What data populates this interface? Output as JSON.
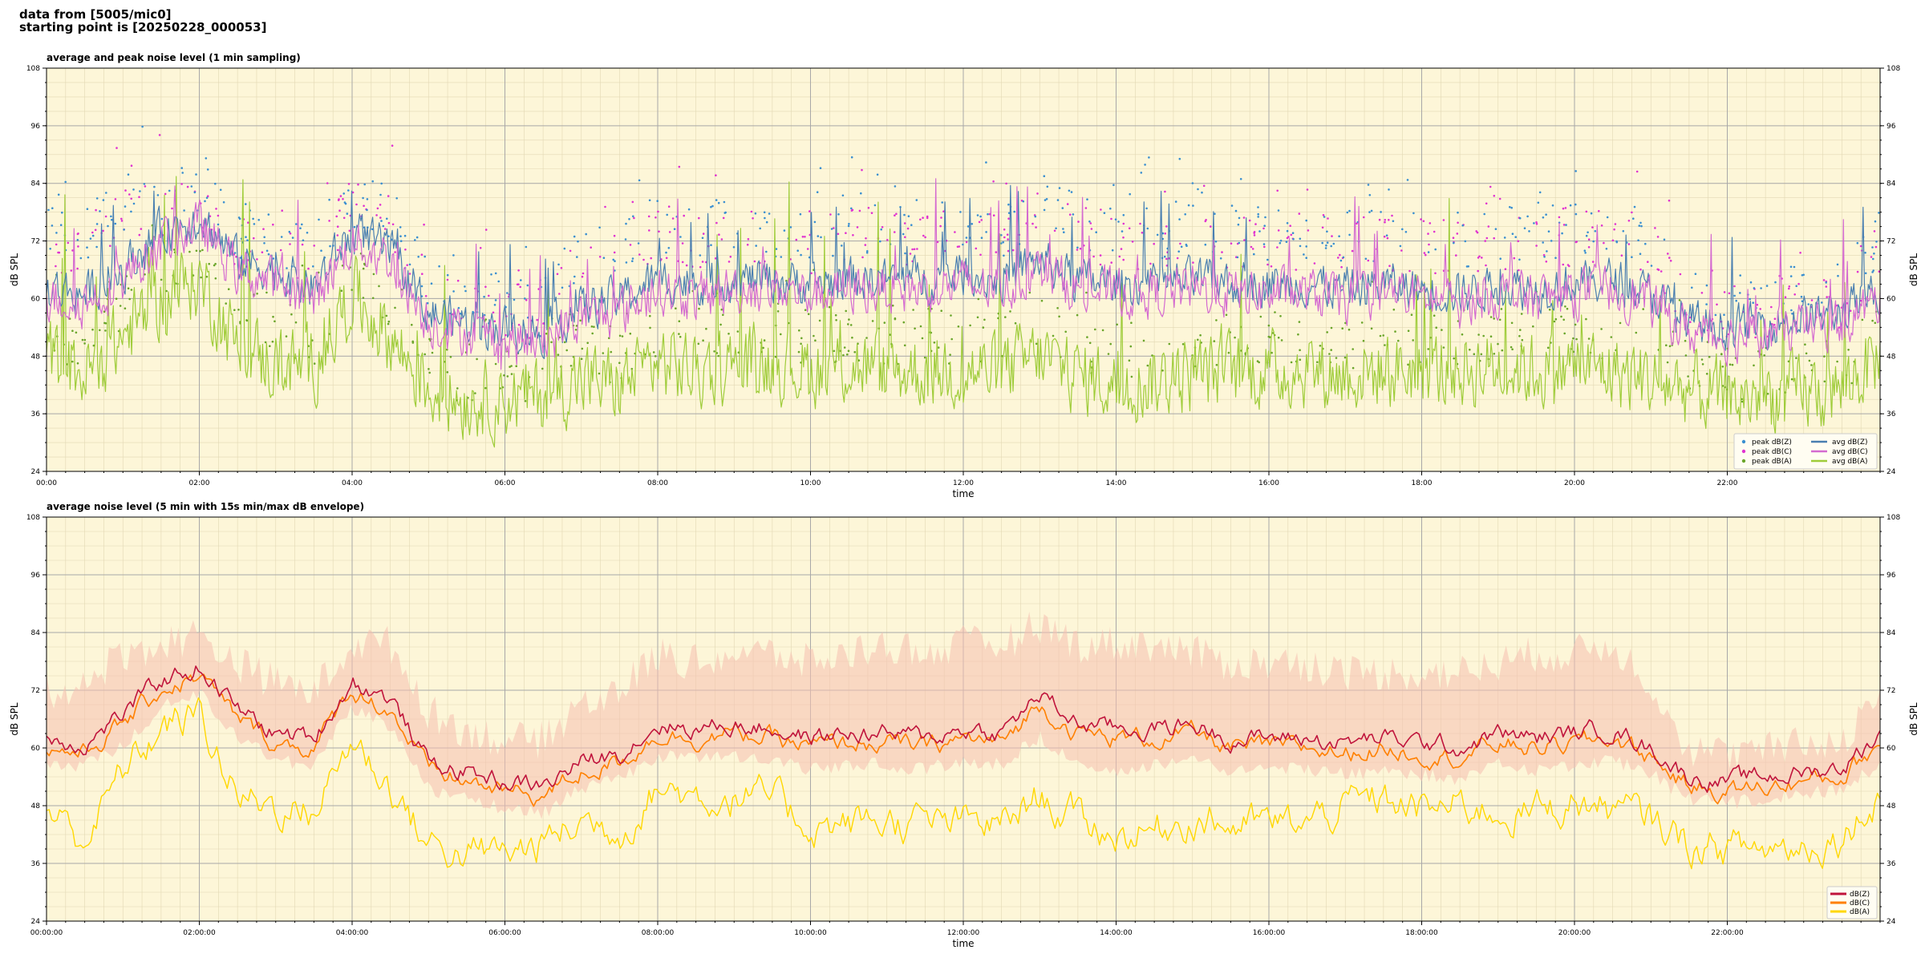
{
  "header": {
    "line1": "data from [5005/mic0]",
    "line2": "starting point is [20250228_000053]"
  },
  "colors": {
    "background": "#fdf6d8",
    "peak_z": "#3a8fd0",
    "peak_c": "#e033d0",
    "peak_a": "#6aa52a",
    "avg_z": "#4a7fb0",
    "avg_c": "#d46ad0",
    "avg_a": "#9fcc3a",
    "dB_Z": "#c0143c",
    "dB_C": "#ff8000",
    "dB_A": "#ffd700",
    "envelope": "#f5c0b0"
  },
  "chart_data": [
    {
      "type": "line",
      "title": "average and peak noise level (1 min sampling)",
      "xlabel": "time",
      "ylabel": "dB SPL",
      "ylim": [
        24,
        108
      ],
      "yticks": [
        24,
        36,
        48,
        60,
        72,
        84,
        96,
        108
      ],
      "xlim_hours": [
        0,
        24
      ],
      "xtick_labels": [
        "00:00",
        "02:00",
        "04:00",
        "06:00",
        "08:00",
        "10:00",
        "12:00",
        "14:00",
        "16:00",
        "18:00",
        "20:00",
        "22:00"
      ],
      "grid": true,
      "legend_position": "bottom-right",
      "legend": [
        "peak dB(Z)",
        "peak dB(C)",
        "peak dB(A)",
        "avg dB(Z)",
        "avg dB(C)",
        "avg dB(A)"
      ],
      "x_hours": [
        0,
        0.5,
        1,
        1.5,
        2,
        2.5,
        3,
        3.5,
        4,
        4.5,
        5,
        5.5,
        6,
        6.5,
        7,
        7.5,
        8,
        8.5,
        9,
        9.5,
        10,
        10.5,
        11,
        11.5,
        12,
        12.5,
        13,
        13.5,
        14,
        14.5,
        15,
        15.5,
        16,
        16.5,
        17,
        17.5,
        18,
        18.5,
        19,
        19.5,
        20,
        20.5,
        21,
        21.5,
        22,
        22.5,
        23,
        23.5,
        24
      ],
      "series": [
        {
          "name": "avg dB(Z)",
          "values": [
            62,
            61,
            66,
            74,
            77,
            68,
            66,
            62,
            74,
            70,
            57,
            55,
            54,
            53,
            58,
            60,
            64,
            63,
            64,
            64,
            63,
            64,
            64,
            64,
            65,
            64,
            68,
            64,
            63,
            63,
            64,
            63,
            63,
            63,
            62,
            63,
            62,
            61,
            63,
            62,
            63,
            64,
            61,
            55,
            54,
            55,
            56,
            57,
            62
          ]
        },
        {
          "name": "avg dB(C)",
          "values": [
            60,
            59,
            64,
            72,
            75,
            66,
            63,
            60,
            72,
            68,
            55,
            53,
            51,
            51,
            56,
            57,
            62,
            60,
            62,
            62,
            61,
            62,
            62,
            62,
            63,
            62,
            66,
            62,
            61,
            61,
            62,
            61,
            61,
            61,
            60,
            61,
            60,
            59,
            61,
            60,
            61,
            62,
            59,
            53,
            52,
            53,
            54,
            55,
            60
          ]
        },
        {
          "name": "avg dB(A)",
          "values": [
            48,
            44,
            52,
            60,
            64,
            50,
            46,
            46,
            61,
            52,
            41,
            39,
            39,
            40,
            43,
            42,
            47,
            45,
            46,
            47,
            45,
            46,
            45,
            45,
            45,
            45,
            48,
            44,
            42,
            43,
            44,
            45,
            45,
            45,
            44,
            45,
            45,
            45,
            46,
            45,
            46,
            45,
            43,
            41,
            39,
            40,
            40,
            41,
            48
          ]
        },
        {
          "name": "peak dB(Z)",
          "values": [
            73,
            74,
            80,
            81,
            82,
            73,
            72,
            70,
            81,
            78,
            63,
            61,
            60,
            58,
            70,
            72,
            76,
            74,
            75,
            74,
            73,
            75,
            74,
            75,
            76,
            74,
            80,
            76,
            74,
            74,
            75,
            74,
            74,
            74,
            73,
            74,
            73,
            72,
            74,
            73,
            74,
            76,
            72,
            60,
            59,
            60,
            61,
            62,
            73
          ]
        },
        {
          "name": "peak dB(C)",
          "values": [
            70,
            71,
            77,
            79,
            80,
            71,
            70,
            68,
            79,
            76,
            61,
            59,
            58,
            56,
            68,
            70,
            74,
            72,
            73,
            72,
            71,
            73,
            72,
            73,
            74,
            72,
            78,
            74,
            72,
            72,
            73,
            72,
            72,
            72,
            71,
            72,
            71,
            70,
            72,
            71,
            72,
            74,
            70,
            58,
            57,
            58,
            59,
            60,
            71
          ]
        },
        {
          "name": "peak dB(A)",
          "values": [
            55,
            50,
            58,
            66,
            70,
            58,
            54,
            52,
            66,
            60,
            46,
            44,
            43,
            44,
            50,
            48,
            54,
            52,
            53,
            54,
            52,
            53,
            52,
            52,
            52,
            52,
            55,
            51,
            49,
            50,
            51,
            52,
            52,
            52,
            51,
            52,
            52,
            52,
            53,
            52,
            53,
            52,
            50,
            46,
            44,
            45,
            45,
            46,
            55
          ]
        }
      ]
    },
    {
      "type": "line",
      "title": "average noise level (5 min with 15s min/max dB envelope)",
      "xlabel": "time",
      "ylabel": "dB SPL",
      "ylim": [
        24,
        108
      ],
      "yticks": [
        24,
        36,
        48,
        60,
        72,
        84,
        96,
        108
      ],
      "xlim_hours": [
        0,
        24
      ],
      "xtick_labels": [
        "00:00:00",
        "02:00:00",
        "04:00:00",
        "06:00:00",
        "08:00:00",
        "10:00:00",
        "12:00:00",
        "14:00:00",
        "16:00:00",
        "18:00:00",
        "20:00:00",
        "22:00:00"
      ],
      "grid": true,
      "legend_position": "bottom-right",
      "legend": [
        "dB(Z)",
        "dB(C)",
        "dB(A)"
      ],
      "x_hours": [
        0,
        0.5,
        1,
        1.5,
        2,
        2.5,
        3,
        3.5,
        4,
        4.5,
        5,
        5.5,
        6,
        6.5,
        7,
        7.5,
        8,
        8.5,
        9,
        9.5,
        10,
        10.5,
        11,
        11.5,
        12,
        12.5,
        13,
        13.5,
        14,
        14.5,
        15,
        15.5,
        16,
        16.5,
        17,
        17.5,
        18,
        18.5,
        19,
        19.5,
        20,
        20.5,
        21,
        21.5,
        22,
        22.5,
        23,
        23.5,
        24
      ],
      "series": [
        {
          "name": "dB(Z)",
          "values": [
            62,
            61,
            67,
            74,
            77,
            68,
            63,
            62,
            74,
            70,
            57,
            55,
            53,
            52,
            57,
            59,
            65,
            64,
            65,
            64,
            62,
            63,
            63,
            62,
            64,
            63,
            71,
            65,
            64,
            64,
            65,
            62,
            62,
            62,
            61,
            62,
            61,
            60,
            63,
            62,
            63,
            64,
            60,
            54,
            53,
            54,
            55,
            56,
            63
          ]
        },
        {
          "name": "dB(C)",
          "values": [
            60,
            59,
            65,
            72,
            75,
            66,
            61,
            60,
            72,
            68,
            55,
            53,
            51,
            50,
            55,
            57,
            63,
            62,
            63,
            62,
            60,
            61,
            61,
            60,
            62,
            61,
            69,
            63,
            62,
            62,
            63,
            60,
            60,
            60,
            59,
            60,
            59,
            58,
            61,
            60,
            61,
            62,
            58,
            52,
            51,
            52,
            53,
            54,
            61
          ]
        },
        {
          "name": "dB(A)",
          "values": [
            47,
            41,
            55,
            64,
            67,
            50,
            48,
            47,
            62,
            52,
            40,
            38,
            38,
            40,
            45,
            43,
            52,
            50,
            50,
            49,
            44,
            44,
            45,
            44,
            44,
            44,
            50,
            45,
            42,
            43,
            46,
            44,
            44,
            44,
            48,
            49,
            47,
            48,
            47,
            47,
            49,
            47,
            45,
            40,
            39,
            39,
            40,
            42,
            51
          ]
        },
        {
          "name": "envelope max",
          "values": [
            70,
            72,
            78,
            80,
            82,
            76,
            72,
            70,
            80,
            80,
            66,
            62,
            60,
            60,
            68,
            70,
            78,
            76,
            78,
            78,
            76,
            78,
            80,
            78,
            80,
            80,
            84,
            80,
            80,
            80,
            78,
            76,
            76,
            76,
            74,
            74,
            74,
            74,
            76,
            78,
            78,
            80,
            72,
            58,
            57,
            58,
            59,
            60,
            70
          ]
        },
        {
          "name": "envelope min",
          "values": [
            58,
            58,
            62,
            70,
            73,
            64,
            59,
            58,
            70,
            66,
            53,
            51,
            49,
            48,
            53,
            55,
            60,
            59,
            60,
            59,
            57,
            58,
            58,
            57,
            59,
            58,
            64,
            58,
            57,
            58,
            59,
            57,
            57,
            57,
            56,
            57,
            56,
            55,
            58,
            57,
            58,
            59,
            56,
            51,
            50,
            51,
            52,
            53,
            58
          ]
        }
      ]
    }
  ]
}
